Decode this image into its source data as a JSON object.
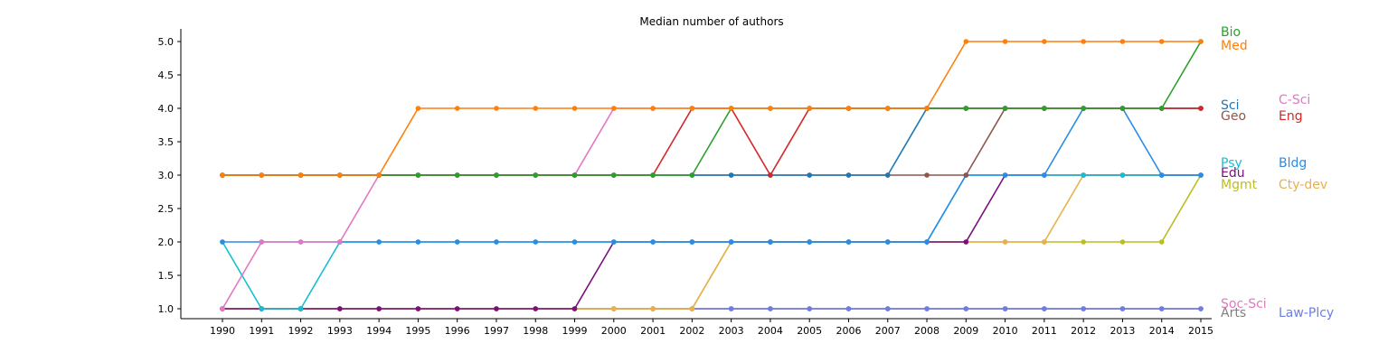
{
  "chart_data": {
    "type": "line",
    "title": "Median number of authors",
    "xlabel": "",
    "ylabel": "",
    "x": [
      1990,
      1991,
      1992,
      1993,
      1994,
      1995,
      1996,
      1997,
      1998,
      1999,
      2000,
      2001,
      2002,
      2003,
      2004,
      2005,
      2006,
      2007,
      2008,
      2009,
      2010,
      2011,
      2012,
      2013,
      2014,
      2015
    ],
    "xlim": [
      1990,
      2015
    ],
    "ylim": [
      1.0,
      5.0
    ],
    "yticks": [
      1.0,
      1.5,
      2.0,
      2.5,
      3.0,
      3.5,
      4.0,
      4.5,
      5.0
    ],
    "yticklabels": [
      "1.0",
      "1.5",
      "2.0",
      "2.5",
      "3.0",
      "3.5",
      "4.0",
      "4.5",
      "5.0"
    ],
    "grid": false,
    "legend_placement": "right",
    "series": [
      {
        "name": "Arts",
        "color": "#7f7f7f",
        "values": [
          1,
          1,
          1,
          1,
          1,
          1,
          1,
          1,
          1,
          1,
          1,
          1,
          1,
          1,
          1,
          1,
          1,
          1,
          1,
          1,
          1,
          1,
          1,
          1,
          1,
          1
        ]
      },
      {
        "name": "Soc-Sci",
        "color": "#e377c2",
        "values": [
          1,
          1,
          1,
          1,
          1,
          1,
          1,
          1,
          1,
          1,
          1,
          1,
          1,
          1,
          1,
          1,
          1,
          1,
          1,
          1,
          1,
          1,
          1,
          1,
          1,
          1
        ]
      },
      {
        "name": "Law-Plcy",
        "color": "#6a7ee6",
        "values": [
          1,
          1,
          1,
          1,
          1,
          1,
          1,
          1,
          1,
          1,
          1,
          1,
          1,
          1,
          1,
          1,
          1,
          1,
          1,
          1,
          1,
          1,
          1,
          1,
          1,
          1
        ]
      },
      {
        "name": "Mgmt",
        "color": "#bcbd22",
        "values": [
          1,
          1,
          1,
          1,
          1,
          1,
          1,
          1,
          1,
          1,
          1,
          1,
          1,
          2,
          2,
          2,
          2,
          2,
          2,
          2,
          2,
          2,
          2,
          2,
          2,
          3
        ]
      },
      {
        "name": "Cty-dev",
        "color": "#e8b04e",
        "values": [
          1,
          1,
          1,
          1,
          1,
          1,
          1,
          1,
          1,
          1,
          1,
          1,
          1,
          2,
          2,
          2,
          2,
          2,
          2,
          2,
          2,
          2,
          3,
          3,
          3,
          3
        ]
      },
      {
        "name": "Edu",
        "color": "#7b0f7b",
        "values": [
          1,
          1,
          1,
          1,
          1,
          1,
          1,
          1,
          1,
          1,
          2,
          2,
          2,
          2,
          2,
          2,
          2,
          2,
          2,
          2,
          3,
          3,
          3,
          3,
          3,
          3
        ]
      },
      {
        "name": "Psy",
        "color": "#17becf",
        "values": [
          2,
          1,
          1,
          2,
          2,
          2,
          2,
          2,
          2,
          2,
          2,
          2,
          2,
          2,
          2,
          2,
          2,
          2,
          2,
          3,
          3,
          3,
          3,
          3,
          3,
          3
        ]
      },
      {
        "name": "Bldg",
        "color": "#2b8ce8",
        "values": [
          2,
          2,
          2,
          2,
          2,
          2,
          2,
          2,
          2,
          2,
          2,
          2,
          2,
          2,
          2,
          2,
          2,
          2,
          2,
          3,
          3,
          3,
          4,
          4,
          3,
          3
        ]
      },
      {
        "name": "C-Sci",
        "color": "#e377c2",
        "values": [
          1,
          2,
          2,
          2,
          3,
          3,
          3,
          3,
          3,
          3,
          4,
          4,
          4,
          4,
          4,
          4,
          4,
          4,
          4,
          4,
          4,
          4,
          4,
          4,
          4,
          4
        ]
      },
      {
        "name": "Geo",
        "color": "#8c564b",
        "values": [
          3,
          3,
          3,
          3,
          3,
          3,
          3,
          3,
          3,
          3,
          3,
          3,
          3,
          3,
          3,
          3,
          3,
          3,
          3,
          3,
          4,
          4,
          4,
          4,
          4,
          4
        ]
      },
      {
        "name": "Sci",
        "color": "#1f77b4",
        "values": [
          3,
          3,
          3,
          3,
          3,
          3,
          3,
          3,
          3,
          3,
          3,
          3,
          3,
          3,
          3,
          3,
          3,
          3,
          4,
          4,
          4,
          4,
          4,
          4,
          4,
          4
        ]
      },
      {
        "name": "Eng",
        "color": "#d62728",
        "values": [
          3,
          3,
          3,
          3,
          3,
          3,
          3,
          3,
          3,
          3,
          3,
          3,
          4,
          4,
          3,
          4,
          4,
          4,
          4,
          4,
          4,
          4,
          4,
          4,
          4,
          4
        ]
      },
      {
        "name": "Bio",
        "color": "#2ca02c",
        "values": [
          3,
          3,
          3,
          3,
          3,
          3,
          3,
          3,
          3,
          3,
          3,
          3,
          3,
          4,
          4,
          4,
          4,
          4,
          4,
          4,
          4,
          4,
          4,
          4,
          4,
          5
        ]
      },
      {
        "name": "Med",
        "color": "#ff7f0e",
        "values": [
          3,
          3,
          3,
          3,
          3,
          4,
          4,
          4,
          4,
          4,
          4,
          4,
          4,
          4,
          4,
          4,
          4,
          4,
          4,
          5,
          5,
          5,
          5,
          5,
          5,
          5
        ]
      }
    ]
  }
}
